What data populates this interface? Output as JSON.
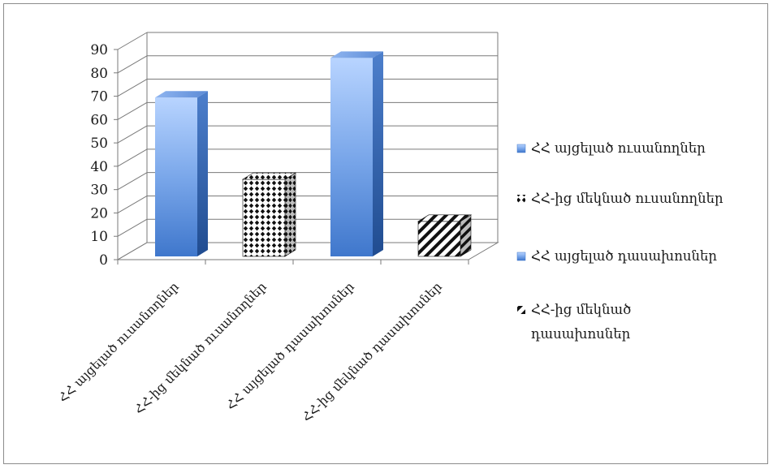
{
  "chart_data": {
    "type": "bar",
    "title": "",
    "xlabel": "",
    "ylabel": "",
    "ylim": [
      0,
      90
    ],
    "yticks": [
      0,
      10,
      20,
      30,
      40,
      50,
      60,
      70,
      80,
      90
    ],
    "grid": true,
    "legend_position": "right",
    "categories": [
      "ՀՀ այցելած ուսանողներ",
      "ՀՀ-ից մեկնած ուսանողներ",
      "ՀՀ այցելած դասախոսներ",
      "ՀՀ-ից մեկնած դասախոսներ"
    ],
    "values": [
      68,
      33,
      85,
      15
    ],
    "legend": [
      {
        "label": "ՀՀ այցելած ուսանողներ",
        "fill": "blue"
      },
      {
        "label": "ՀՀ-ից մեկնած ուսանողներ",
        "fill": "dots"
      },
      {
        "label": "ՀՀ այցելած դասախոսներ",
        "fill": "blue"
      },
      {
        "label": "ՀՀ-ից մեկնած դասախոսներ",
        "fill": "stripes"
      }
    ],
    "bar_fills": [
      "blue",
      "dots",
      "blue",
      "stripes"
    ],
    "colors": {
      "blue_light": "#a9cbff",
      "blue_dark": "#3d74c8",
      "blue_side": "#2c5aa0",
      "pattern_black": "#111111",
      "grid": "#7a7a7a"
    }
  }
}
